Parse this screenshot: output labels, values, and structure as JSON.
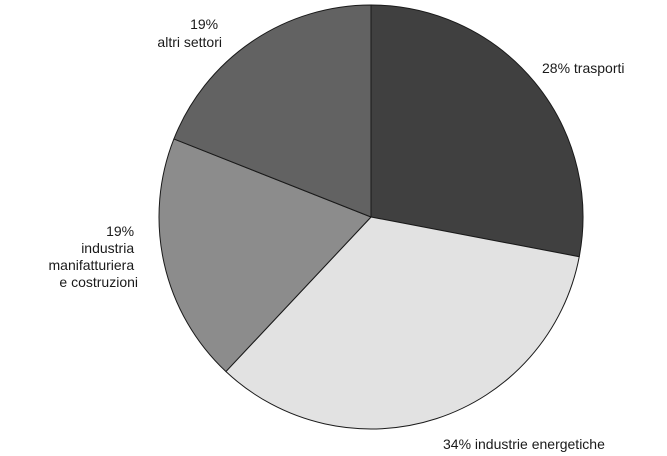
{
  "chart_data": {
    "type": "pie",
    "slices": [
      {
        "label_lines": [
          "28% trasporti"
        ],
        "value": 28,
        "color": "#404040"
      },
      {
        "label_lines": [
          "34% industrie energetiche"
        ],
        "value": 34,
        "color": "#e2e2e2"
      },
      {
        "label_lines": [
          "19%",
          "industria",
          "manifatturiera",
          "e costruzioni"
        ],
        "value": 19,
        "color": "#8c8c8c"
      },
      {
        "label_lines": [
          "19%",
          "altri settori"
        ],
        "value": 19,
        "color": "#626262"
      }
    ],
    "start": "top",
    "direction": "clockwise",
    "edge_color": "#1a1a1a"
  }
}
